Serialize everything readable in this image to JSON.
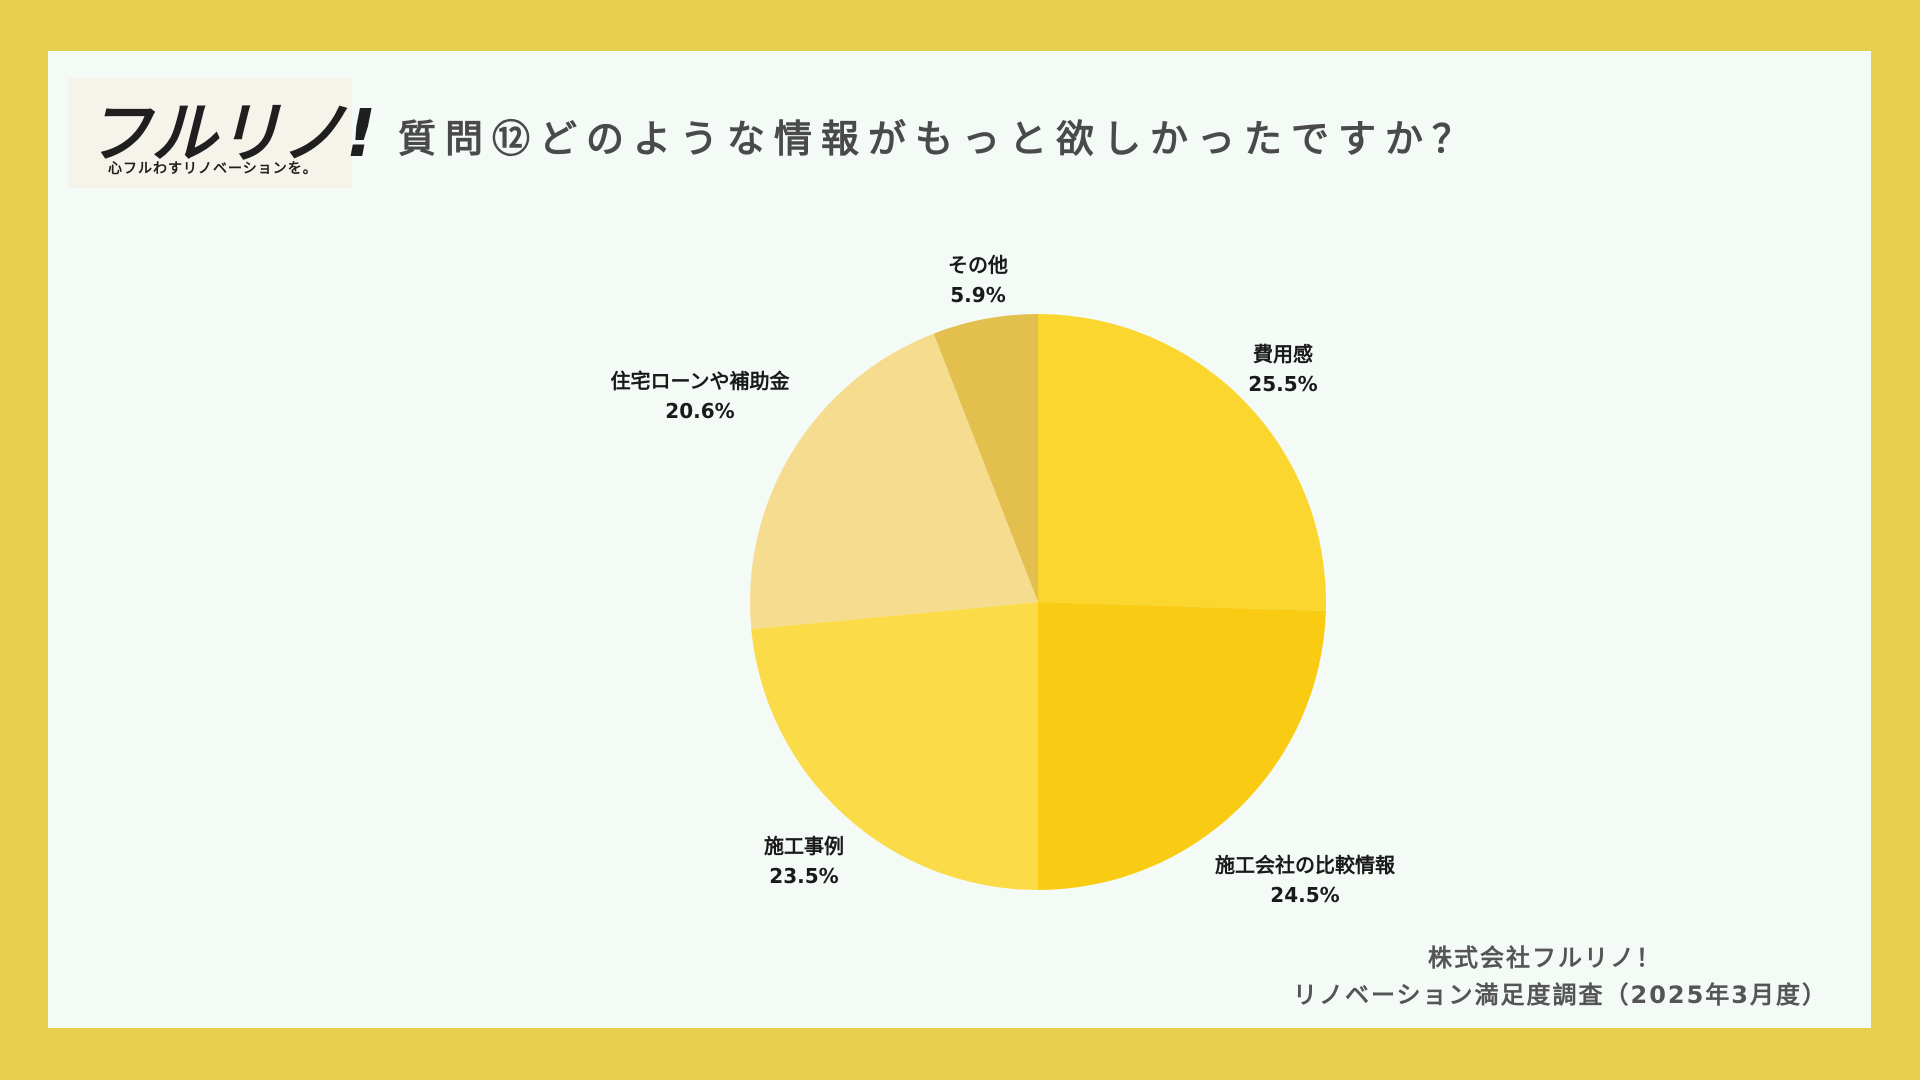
{
  "logo": {
    "main": "フルリノ!",
    "tagline": "心フルわすリノベーションを。"
  },
  "title": "質問⑫どのような情報がもっと欲しかったですか？",
  "credit": {
    "company": "株式会社フルリノ！",
    "survey": "リノベーション満足度調査（2025年3月度）"
  },
  "colors": {
    "frame": "#e5cf4c",
    "panel": "#f4faf5"
  },
  "chart_data": {
    "type": "pie",
    "title": "",
    "start_angle_deg": 0,
    "direction": "clockwise",
    "slices": [
      {
        "label": "費用感",
        "value": 25.5,
        "percent_text": "25.5%",
        "color": "#fad62e"
      },
      {
        "label": "施工会社の比較情報",
        "value": 24.5,
        "percent_text": "24.5%",
        "color": "#f9cc13"
      },
      {
        "label": "施工事例",
        "value": 23.5,
        "percent_text": "23.5%",
        "color": "#fcdb48"
      },
      {
        "label": "住宅ローンや補助金",
        "value": 20.6,
        "percent_text": "20.6%",
        "color": "#f6dc8f"
      },
      {
        "label": "その他",
        "value": 5.9,
        "percent_text": "5.9%",
        "color": "#e3c04d"
      }
    ]
  }
}
